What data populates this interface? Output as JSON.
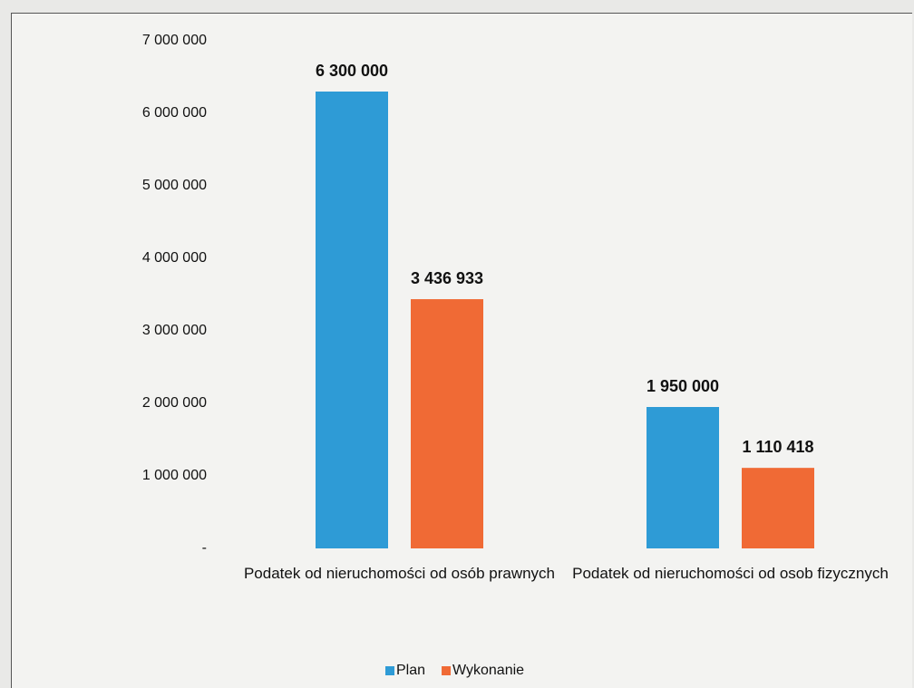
{
  "chart_data": {
    "type": "bar",
    "categories": [
      "Podatek od nieruchomości od osób prawnych",
      "Podatek od nieruchomości od osob fizycznych"
    ],
    "series": [
      {
        "name": "Plan",
        "color": "#2e9bd6",
        "values": [
          6300000,
          1950000
        ],
        "value_labels": [
          "6 300 000",
          "1 950 000"
        ]
      },
      {
        "name": "Wykonanie",
        "color": "#f06a35",
        "values": [
          3436933,
          1110418
        ],
        "value_labels": [
          "3 436 933",
          "1 110 418"
        ]
      }
    ],
    "ylim": [
      0,
      7000000
    ],
    "yticks": [
      {
        "value": 0,
        "label": "-"
      },
      {
        "value": 1000000,
        "label": "1 000 000"
      },
      {
        "value": 2000000,
        "label": "2 000 000"
      },
      {
        "value": 3000000,
        "label": "3 000 000"
      },
      {
        "value": 4000000,
        "label": "4 000 000"
      },
      {
        "value": 5000000,
        "label": "5 000 000"
      },
      {
        "value": 6000000,
        "label": "6 000 000"
      },
      {
        "value": 7000000,
        "label": "7 000 000"
      }
    ],
    "grid": false,
    "legend": "bottom"
  }
}
